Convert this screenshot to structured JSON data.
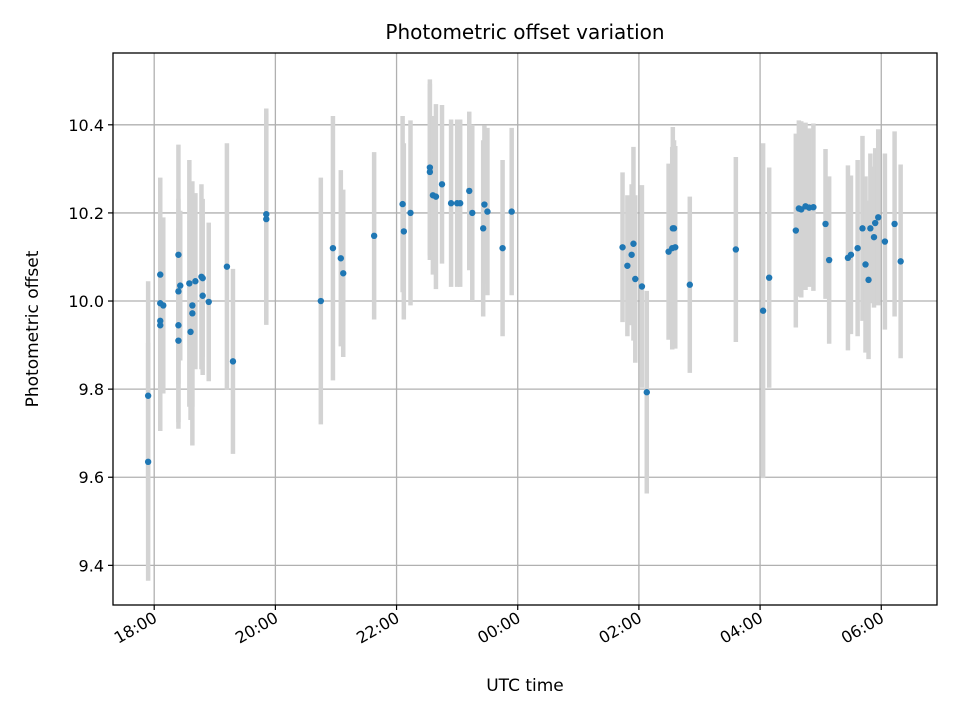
{
  "chart_data": {
    "type": "scatter",
    "title": "Photometric offset variation",
    "xlabel": "UTC time",
    "ylabel": "Photometric offset",
    "grid": true,
    "x_unit": "hours (clock time, runs past midnight)",
    "xlim": [
      17.32,
      30.92
    ],
    "ylim": [
      9.31,
      10.563
    ],
    "x_ticks": [
      {
        "value": 18,
        "label": "18:00"
      },
      {
        "value": 20,
        "label": "20:00"
      },
      {
        "value": 22,
        "label": "22:00"
      },
      {
        "value": 24,
        "label": "00:00"
      },
      {
        "value": 26,
        "label": "02:00"
      },
      {
        "value": 28,
        "label": "04:00"
      },
      {
        "value": 30,
        "label": "06:00"
      }
    ],
    "y_ticks": [
      {
        "value": 9.4,
        "label": "9.4"
      },
      {
        "value": 9.6,
        "label": "9.6"
      },
      {
        "value": 9.8,
        "label": "9.8"
      },
      {
        "value": 10.0,
        "label": "10.0"
      },
      {
        "value": 10.2,
        "label": "10.2"
      },
      {
        "value": 10.4,
        "label": "10.4"
      }
    ],
    "colors": {
      "points": "#1f77b4",
      "error_bars": "#d3d3d3",
      "grid": "#b0b0b0"
    },
    "series": [
      {
        "x": [
          17.9,
          17.9,
          18.1,
          18.1,
          18.1,
          18.1,
          18.15,
          18.4,
          18.4,
          18.4,
          18.4,
          18.43,
          18.58,
          18.6,
          18.63,
          18.63,
          18.68,
          18.78,
          18.8,
          18.8,
          18.9,
          19.2,
          19.3,
          19.85,
          19.85,
          20.75,
          20.95,
          21.08,
          21.12,
          21.63,
          22.1,
          22.12,
          22.23,
          22.55,
          22.55,
          22.6,
          22.65,
          22.75,
          22.9,
          23.0,
          23.05,
          23.2,
          23.25,
          23.43,
          23.45,
          23.5,
          23.75,
          23.9,
          25.73,
          25.81,
          25.88,
          25.91,
          25.94,
          26.05,
          26.13,
          26.49,
          26.55,
          26.56,
          26.58,
          26.6,
          26.84,
          27.6,
          28.05,
          28.15,
          28.59,
          28.64,
          28.68,
          28.75,
          28.81,
          28.88,
          29.08,
          29.14,
          29.45,
          29.5,
          29.61,
          29.69,
          29.74,
          29.79,
          29.82,
          29.88,
          29.9,
          29.95,
          30.06,
          30.22,
          30.32
        ],
        "y": [
          9.635,
          9.785,
          9.955,
          9.945,
          9.995,
          10.06,
          9.99,
          10.105,
          9.945,
          9.91,
          10.022,
          10.035,
          10.04,
          9.93,
          9.972,
          9.99,
          10.045,
          10.055,
          10.052,
          10.012,
          9.998,
          10.078,
          9.863,
          10.197,
          10.186,
          10.0,
          10.12,
          10.097,
          10.063,
          10.148,
          10.22,
          10.158,
          10.2,
          10.303,
          10.293,
          10.24,
          10.237,
          10.265,
          10.222,
          10.222,
          10.222,
          10.25,
          10.2,
          10.165,
          10.219,
          10.203,
          10.12,
          10.203,
          10.122,
          10.08,
          10.105,
          10.13,
          10.05,
          10.033,
          9.793,
          10.112,
          10.12,
          10.165,
          10.165,
          10.122,
          10.037,
          10.117,
          9.978,
          10.053,
          10.16,
          10.21,
          10.208,
          10.215,
          10.212,
          10.213,
          10.175,
          10.093,
          10.098,
          10.105,
          10.12,
          10.165,
          10.083,
          10.048,
          10.165,
          10.145,
          10.177,
          10.19,
          10.135,
          10.175,
          10.09
        ],
        "err": [
          0.27,
          0.26,
          0.17,
          0.24,
          0.2,
          0.22,
          0.2,
          0.25,
          0.22,
          0.2,
          0.21,
          0.17,
          0.28,
          0.2,
          0.3,
          0.23,
          0.2,
          0.21,
          0.18,
          0.18,
          0.18,
          0.28,
          0.21,
          0.24,
          0.24,
          0.28,
          0.3,
          0.2,
          0.19,
          0.19,
          0.2,
          0.2,
          0.21,
          0.2,
          0.2,
          0.18,
          0.21,
          0.18,
          0.19,
          0.19,
          0.19,
          0.18,
          0.2,
          0.2,
          0.18,
          0.19,
          0.2,
          0.19,
          0.17,
          0.16,
          0.16,
          0.22,
          0.19,
          0.23,
          0.23,
          0.2,
          0.23,
          0.23,
          0.2,
          0.23,
          0.2,
          0.21,
          0.38,
          0.25,
          0.22,
          0.2,
          0.2,
          0.19,
          0.18,
          0.19,
          0.17,
          0.19,
          0.21,
          0.18,
          0.2,
          0.21,
          0.2,
          0.18,
          0.17,
          0.16,
          0.17,
          0.2,
          0.2,
          0.21,
          0.22
        ]
      }
    ]
  }
}
